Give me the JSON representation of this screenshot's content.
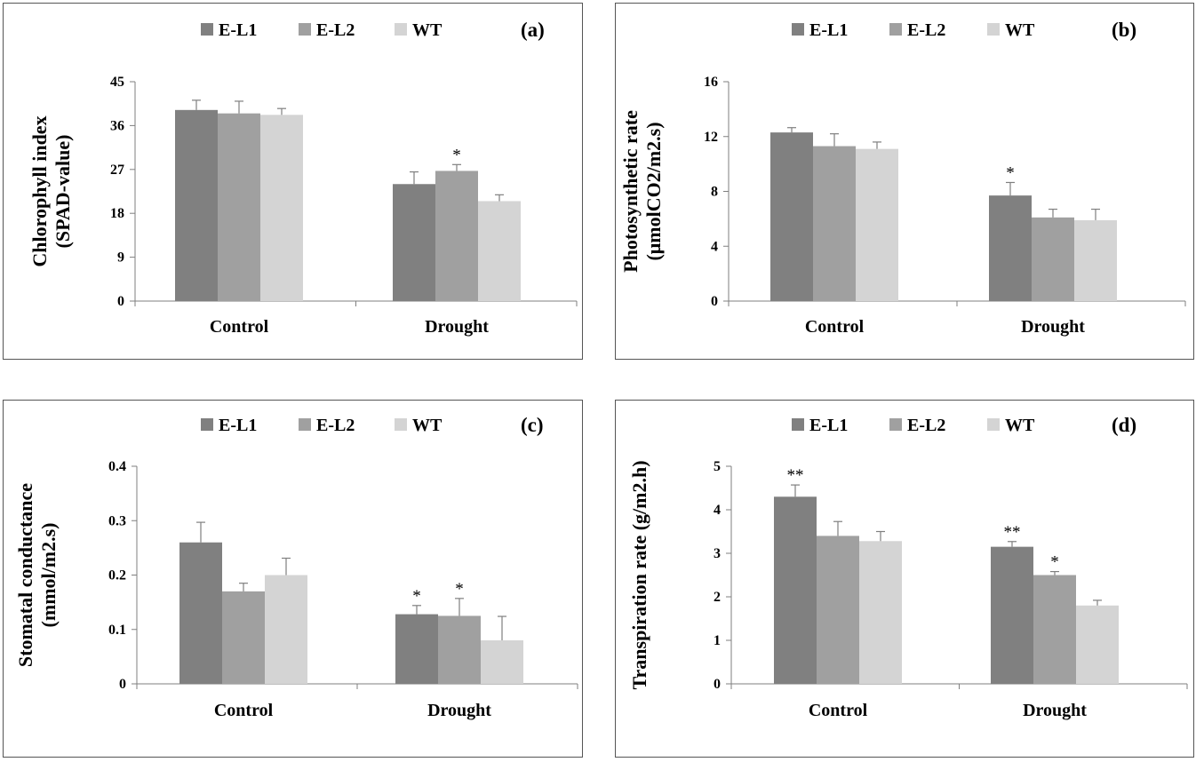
{
  "colors": {
    "E-L1": "#808080",
    "E-L2": "#a0a0a0",
    "WT": "#d4d4d4",
    "axis": "#7f7f7f",
    "error": "#7f7f7f"
  },
  "chart_data": [
    {
      "type": "bar",
      "panel_label": "(a)",
      "categories": [
        "Control",
        "Drought"
      ],
      "series": [
        {
          "name": "E-L1",
          "values": [
            39.2,
            24.0
          ],
          "errors": [
            2.0,
            2.5
          ],
          "stars": [
            "",
            ""
          ]
        },
        {
          "name": "E-L2",
          "values": [
            38.5,
            26.7
          ],
          "errors": [
            2.5,
            1.3
          ],
          "stars": [
            "",
            "*"
          ]
        },
        {
          "name": "WT",
          "values": [
            38.2,
            20.5
          ],
          "errors": [
            1.3,
            1.3
          ],
          "stars": [
            "",
            ""
          ]
        }
      ],
      "ylabel_lines": [
        "Chlorophyll index",
        "(SPAD-value)"
      ],
      "ylim": [
        0,
        45
      ],
      "yticks": [
        "0",
        "9",
        "18",
        "27",
        "36",
        "45"
      ]
    },
    {
      "type": "bar",
      "panel_label": "(b)",
      "categories": [
        "Control",
        "Drought"
      ],
      "series": [
        {
          "name": "E-L1",
          "values": [
            12.3,
            7.7
          ],
          "errors": [
            0.35,
            0.95
          ],
          "stars": [
            "",
            "*"
          ]
        },
        {
          "name": "E-L2",
          "values": [
            11.3,
            6.1
          ],
          "errors": [
            0.9,
            0.6
          ],
          "stars": [
            "",
            ""
          ]
        },
        {
          "name": "WT",
          "values": [
            11.1,
            5.9
          ],
          "errors": [
            0.5,
            0.8
          ],
          "stars": [
            "",
            ""
          ]
        }
      ],
      "ylabel_lines": [
        "Photosynthetic rate",
        "(μmolCO2/m2.s)"
      ],
      "ylim": [
        0,
        16
      ],
      "yticks": [
        "0",
        "4",
        "8",
        "12",
        "16"
      ]
    },
    {
      "type": "bar",
      "panel_label": "(c)",
      "categories": [
        "Control",
        "Drought"
      ],
      "series": [
        {
          "name": "E-L1",
          "values": [
            0.26,
            0.128
          ],
          "errors": [
            0.037,
            0.016
          ],
          "stars": [
            "",
            "*"
          ]
        },
        {
          "name": "E-L2",
          "values": [
            0.17,
            0.125
          ],
          "errors": [
            0.015,
            0.032
          ],
          "stars": [
            "",
            "*"
          ]
        },
        {
          "name": "WT",
          "values": [
            0.2,
            0.08
          ],
          "errors": [
            0.031,
            0.044
          ],
          "stars": [
            "",
            ""
          ]
        }
      ],
      "ylabel_lines": [
        "Stomatal conductance",
        "(mmol/m2.s)"
      ],
      "ylim": [
        0,
        0.4
      ],
      "yticks": [
        "0",
        "0.1",
        "0.2",
        "0.3",
        "0.4"
      ]
    },
    {
      "type": "bar",
      "panel_label": "(d)",
      "categories": [
        "Control",
        "Drought"
      ],
      "series": [
        {
          "name": "E-L1",
          "values": [
            4.3,
            3.15
          ],
          "errors": [
            0.27,
            0.12
          ],
          "stars": [
            "**",
            "**"
          ]
        },
        {
          "name": "E-L2",
          "values": [
            3.4,
            2.5
          ],
          "errors": [
            0.33,
            0.08
          ],
          "stars": [
            "",
            "*"
          ]
        },
        {
          "name": "WT",
          "values": [
            3.28,
            1.8
          ],
          "errors": [
            0.22,
            0.12
          ],
          "stars": [
            "",
            ""
          ]
        }
      ],
      "ylabel_lines": [
        "Transpiration rate (g/m2.h)"
      ],
      "ylim": [
        0,
        5
      ],
      "yticks": [
        "0",
        "1",
        "2",
        "3",
        "4",
        "5"
      ]
    }
  ]
}
